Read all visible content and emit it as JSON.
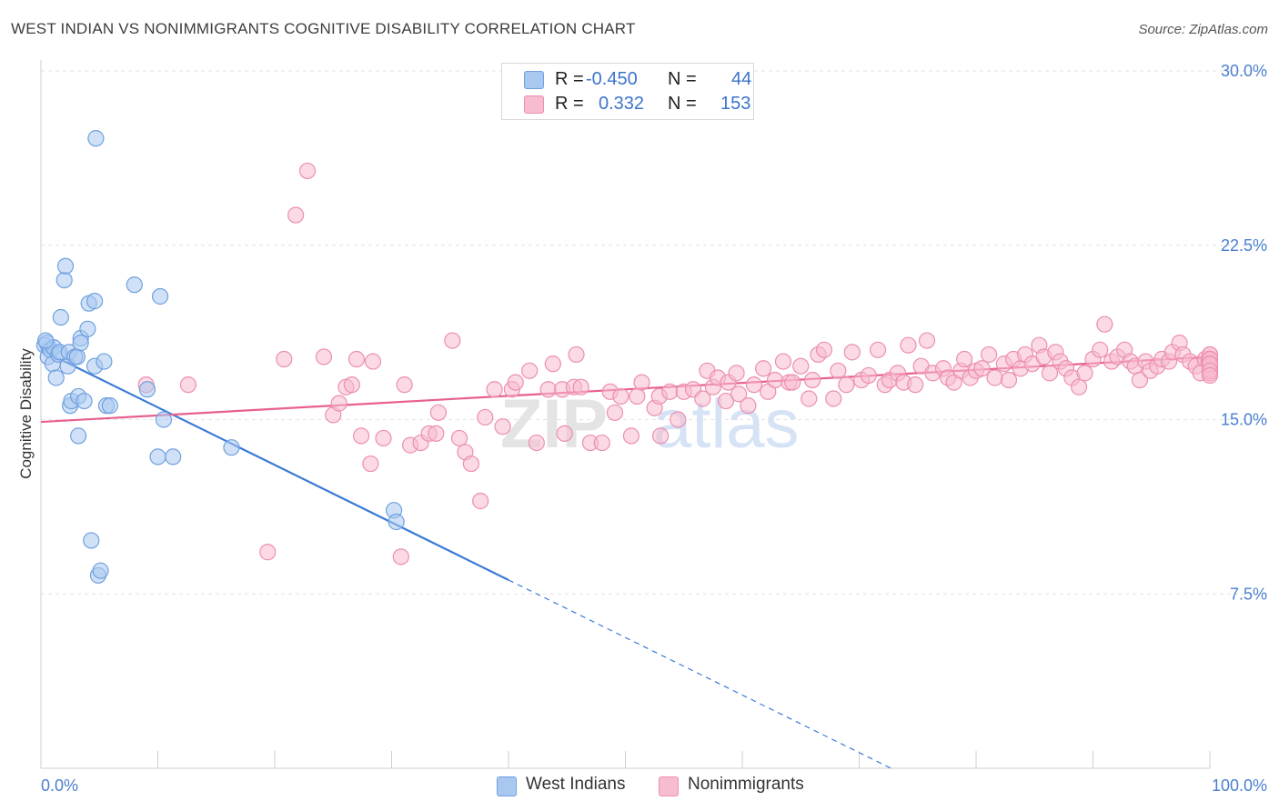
{
  "title": "WEST INDIAN VS NONIMMIGRANTS COGNITIVE DISABILITY CORRELATION CHART",
  "source": "Source: ZipAtlas.com",
  "watermark": {
    "zip": "ZIP",
    "atlas": "atlas"
  },
  "legend": {
    "rows": [
      {
        "r_label": "R =",
        "r_value": "-0.450",
        "n_label": "N =",
        "n_value": "44"
      },
      {
        "r_label": "R =",
        "r_value": "0.332",
        "n_label": "N =",
        "n_value": "153"
      }
    ]
  },
  "bottom_legend": [
    "West Indians",
    "Nonimmigrants"
  ],
  "colors": {
    "west_indians_fill": "#a9c8f0",
    "west_indians_stroke": "#6fa0e0",
    "west_indians_line": "#3a7bd5",
    "nonimmigrants_fill": "#f7bcd0",
    "nonimmigrants_stroke": "#ec8fae",
    "nonimmigrants_line": "#e8608e",
    "tick_label": "#4a7fd0"
  },
  "chart_data": {
    "type": "scatter",
    "title": "WEST INDIAN VS NONIMMIGRANTS COGNITIVE DISABILITY CORRELATION CHART",
    "xlabel": "",
    "ylabel": "Cognitive Disability",
    "xlim": [
      0,
      100
    ],
    "ylim": [
      0,
      30
    ],
    "x_tick_labels": [
      "0.0%",
      "100.0%"
    ],
    "y_ticks": [
      7.5,
      15.0,
      22.5,
      30.0
    ],
    "y_tick_labels": [
      "7.5%",
      "15.0%",
      "22.5%",
      "30.0%"
    ],
    "grid": "horizontal dashed",
    "legend_position": "top-center",
    "series": [
      {
        "name": "West Indians",
        "r": -0.45,
        "n": 44,
        "trend": {
          "x0": 0,
          "y0": 18.0,
          "x1": 40,
          "y1": 8.1,
          "dashed_to_x": 73
        },
        "points": [
          [
            0.3,
            18.2
          ],
          [
            0.5,
            18.3
          ],
          [
            0.6,
            17.7
          ],
          [
            0.8,
            18.0
          ],
          [
            1.0,
            17.4
          ],
          [
            1.1,
            18.1
          ],
          [
            1.3,
            16.8
          ],
          [
            1.5,
            17.8
          ],
          [
            1.6,
            17.9
          ],
          [
            1.7,
            19.4
          ],
          [
            2.0,
            21.0
          ],
          [
            2.1,
            21.6
          ],
          [
            2.3,
            17.3
          ],
          [
            2.4,
            17.9
          ],
          [
            2.5,
            15.6
          ],
          [
            2.6,
            15.8
          ],
          [
            2.9,
            17.7
          ],
          [
            3.1,
            17.7
          ],
          [
            3.2,
            16.0
          ],
          [
            3.2,
            14.3
          ],
          [
            3.4,
            18.5
          ],
          [
            3.4,
            18.3
          ],
          [
            3.7,
            15.8
          ],
          [
            4.0,
            18.9
          ],
          [
            4.1,
            20.0
          ],
          [
            4.3,
            9.8
          ],
          [
            4.6,
            20.1
          ],
          [
            4.6,
            17.3
          ],
          [
            4.7,
            27.1
          ],
          [
            4.9,
            8.3
          ],
          [
            5.1,
            8.5
          ],
          [
            5.4,
            17.5
          ],
          [
            5.6,
            15.6
          ],
          [
            5.9,
            15.6
          ],
          [
            8.0,
            20.8
          ],
          [
            9.1,
            16.3
          ],
          [
            10.0,
            13.4
          ],
          [
            10.2,
            20.3
          ],
          [
            10.5,
            15.0
          ],
          [
            11.3,
            13.4
          ],
          [
            16.3,
            13.8
          ],
          [
            30.2,
            11.1
          ],
          [
            30.4,
            10.6
          ],
          [
            0.4,
            18.4
          ]
        ]
      },
      {
        "name": "Nonimmigrants",
        "r": 0.332,
        "n": 153,
        "trend": {
          "x0": 0,
          "y0": 14.9,
          "x1": 100,
          "y1": 17.7
        },
        "points": [
          [
            9.0,
            16.5
          ],
          [
            12.6,
            16.5
          ],
          [
            19.4,
            9.3
          ],
          [
            20.8,
            17.6
          ],
          [
            21.8,
            23.8
          ],
          [
            22.8,
            25.7
          ],
          [
            24.2,
            17.7
          ],
          [
            25.0,
            15.2
          ],
          [
            25.5,
            15.7
          ],
          [
            26.1,
            16.4
          ],
          [
            26.6,
            16.5
          ],
          [
            27.0,
            17.6
          ],
          [
            27.4,
            14.3
          ],
          [
            28.2,
            13.1
          ],
          [
            28.4,
            17.5
          ],
          [
            29.3,
            14.2
          ],
          [
            30.8,
            9.1
          ],
          [
            31.1,
            16.5
          ],
          [
            31.6,
            13.9
          ],
          [
            32.5,
            14.0
          ],
          [
            33.2,
            14.4
          ],
          [
            33.8,
            14.4
          ],
          [
            34.0,
            15.3
          ],
          [
            35.2,
            18.4
          ],
          [
            35.8,
            14.2
          ],
          [
            36.3,
            13.6
          ],
          [
            36.8,
            13.1
          ],
          [
            37.6,
            11.5
          ],
          [
            38.0,
            15.1
          ],
          [
            38.8,
            16.3
          ],
          [
            39.5,
            14.7
          ],
          [
            40.3,
            16.3
          ],
          [
            40.6,
            16.6
          ],
          [
            41.8,
            17.1
          ],
          [
            42.4,
            14.0
          ],
          [
            43.4,
            16.3
          ],
          [
            43.8,
            17.4
          ],
          [
            44.6,
            16.3
          ],
          [
            44.8,
            14.4
          ],
          [
            45.6,
            16.4
          ],
          [
            45.8,
            17.8
          ],
          [
            46.2,
            16.4
          ],
          [
            47.0,
            14.0
          ],
          [
            48.0,
            14.0
          ],
          [
            48.7,
            16.2
          ],
          [
            49.1,
            15.3
          ],
          [
            49.6,
            16.0
          ],
          [
            50.5,
            14.3
          ],
          [
            51.0,
            16.0
          ],
          [
            51.4,
            16.6
          ],
          [
            52.5,
            15.5
          ],
          [
            52.9,
            16.0
          ],
          [
            53.0,
            14.3
          ],
          [
            53.8,
            16.2
          ],
          [
            54.5,
            15.0
          ],
          [
            55.0,
            16.2
          ],
          [
            55.8,
            16.3
          ],
          [
            56.6,
            15.9
          ],
          [
            57.0,
            17.1
          ],
          [
            57.5,
            16.4
          ],
          [
            57.9,
            16.8
          ],
          [
            58.6,
            15.8
          ],
          [
            58.8,
            16.6
          ],
          [
            59.5,
            17.0
          ],
          [
            59.7,
            16.1
          ],
          [
            60.5,
            15.6
          ],
          [
            61.0,
            16.5
          ],
          [
            61.8,
            17.2
          ],
          [
            62.2,
            16.2
          ],
          [
            62.8,
            16.7
          ],
          [
            63.5,
            17.5
          ],
          [
            64.0,
            16.6
          ],
          [
            64.3,
            16.6
          ],
          [
            65.0,
            17.3
          ],
          [
            65.7,
            15.9
          ],
          [
            66.0,
            16.7
          ],
          [
            66.5,
            17.8
          ],
          [
            67.0,
            18.0
          ],
          [
            67.8,
            15.9
          ],
          [
            68.2,
            17.1
          ],
          [
            68.9,
            16.5
          ],
          [
            69.4,
            17.9
          ],
          [
            70.2,
            16.7
          ],
          [
            70.8,
            16.9
          ],
          [
            71.6,
            18.0
          ],
          [
            72.2,
            16.5
          ],
          [
            72.6,
            16.7
          ],
          [
            73.3,
            17.0
          ],
          [
            73.8,
            16.6
          ],
          [
            74.2,
            18.2
          ],
          [
            74.8,
            16.5
          ],
          [
            75.3,
            17.3
          ],
          [
            75.8,
            18.4
          ],
          [
            76.3,
            17.0
          ],
          [
            77.2,
            17.2
          ],
          [
            77.6,
            16.8
          ],
          [
            78.1,
            16.6
          ],
          [
            78.7,
            17.1
          ],
          [
            79.0,
            17.6
          ],
          [
            79.5,
            16.8
          ],
          [
            80.0,
            17.1
          ],
          [
            80.5,
            17.2
          ],
          [
            81.1,
            17.8
          ],
          [
            81.6,
            16.8
          ],
          [
            82.4,
            17.4
          ],
          [
            82.8,
            16.7
          ],
          [
            83.2,
            17.6
          ],
          [
            83.8,
            17.2
          ],
          [
            84.2,
            17.8
          ],
          [
            84.8,
            17.4
          ],
          [
            85.4,
            18.2
          ],
          [
            85.8,
            17.7
          ],
          [
            86.3,
            17.0
          ],
          [
            86.8,
            17.9
          ],
          [
            87.2,
            17.5
          ],
          [
            87.7,
            17.2
          ],
          [
            88.2,
            16.8
          ],
          [
            88.8,
            16.4
          ],
          [
            89.3,
            17.0
          ],
          [
            90.0,
            17.6
          ],
          [
            90.6,
            18.0
          ],
          [
            91.0,
            19.1
          ],
          [
            91.6,
            17.5
          ],
          [
            92.1,
            17.7
          ],
          [
            92.7,
            18.0
          ],
          [
            93.2,
            17.5
          ],
          [
            93.6,
            17.3
          ],
          [
            94.0,
            16.7
          ],
          [
            94.5,
            17.5
          ],
          [
            94.9,
            17.1
          ],
          [
            95.5,
            17.3
          ],
          [
            95.9,
            17.6
          ],
          [
            96.5,
            17.5
          ],
          [
            96.8,
            17.9
          ],
          [
            97.4,
            18.3
          ],
          [
            97.7,
            17.8
          ],
          [
            98.3,
            17.5
          ],
          [
            98.8,
            17.3
          ],
          [
            99.2,
            17.0
          ],
          [
            99.6,
            17.6
          ],
          [
            99.9,
            17.5
          ],
          [
            100.0,
            17.8
          ],
          [
            100.0,
            17.8
          ],
          [
            100.0,
            17.6
          ],
          [
            100.0,
            17.6
          ],
          [
            100.0,
            17.2
          ],
          [
            100.0,
            17.0
          ],
          [
            100.0,
            17.3
          ],
          [
            100.0,
            17.0
          ],
          [
            100.0,
            17.4
          ],
          [
            100.0,
            17.4
          ],
          [
            100.0,
            17.1
          ],
          [
            100.0,
            16.9
          ]
        ]
      }
    ]
  }
}
